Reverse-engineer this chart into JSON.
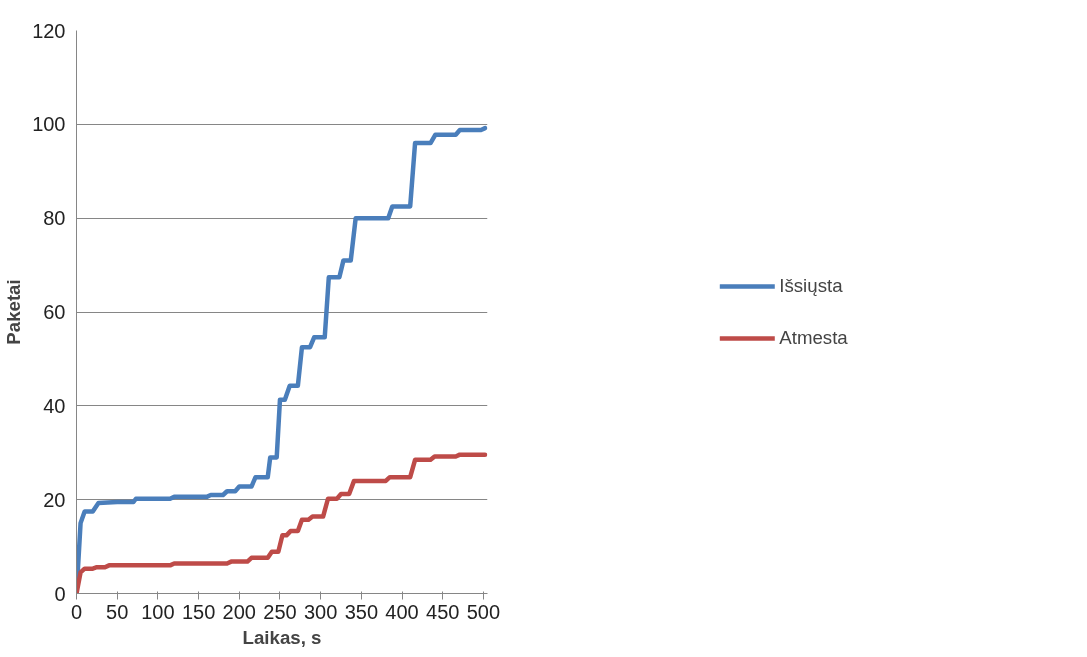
{
  "chart_data": {
    "type": "line",
    "xlabel": "Laikas, s",
    "ylabel": "Paketai",
    "xlim": [
      0,
      505
    ],
    "xticks": [
      0,
      50,
      100,
      150,
      200,
      250,
      300,
      350,
      400,
      450,
      500
    ],
    "ylim": [
      0,
      120
    ],
    "yticks": [
      0,
      20,
      40,
      60,
      80,
      100,
      120
    ],
    "grid": "y",
    "legend": "right",
    "marker": "none",
    "line_style": "solid",
    "series": [
      {
        "name": "Išsiųsta",
        "color": "#4a7ebb",
        "x": [
          0,
          5,
          10,
          20,
          27,
          50,
          70,
          73,
          115,
          120,
          160,
          165,
          180,
          185,
          195,
          200,
          215,
          220,
          235,
          238,
          246,
          250,
          256,
          262,
          272,
          277,
          287,
          292,
          305,
          310,
          323,
          328,
          337,
          343,
          383,
          388,
          410,
          416,
          435,
          441,
          466,
          471,
          497,
          502
        ],
        "values": [
          0,
          15,
          17.5,
          17.5,
          19.3,
          19.5,
          19.5,
          20.2,
          20.2,
          20.6,
          20.6,
          21,
          21,
          21.8,
          21.8,
          22.8,
          22.8,
          24.8,
          24.8,
          29,
          29,
          41.3,
          41.3,
          44.3,
          44.3,
          52.5,
          52.5,
          54.6,
          54.6,
          67.4,
          67.4,
          71,
          71,
          80,
          80,
          82.5,
          82.5,
          96,
          96,
          97.8,
          97.8,
          98.8,
          98.8,
          99.2
        ]
      },
      {
        "name": "Atmesta",
        "color": "#be4b48",
        "x": [
          0,
          5,
          10,
          20,
          25,
          35,
          40,
          115,
          120,
          185,
          190,
          210,
          215,
          235,
          240,
          248,
          253,
          258,
          263,
          272,
          277,
          285,
          290,
          303,
          309,
          320,
          325,
          335,
          341,
          380,
          385,
          410,
          416,
          435,
          440,
          466,
          471,
          502
        ],
        "values": [
          0,
          4.5,
          5.3,
          5.3,
          5.6,
          5.6,
          6,
          6,
          6.4,
          6.4,
          6.8,
          6.8,
          7.6,
          7.6,
          8.9,
          8.9,
          12.4,
          12.4,
          13.3,
          13.3,
          15.7,
          15.7,
          16.4,
          16.4,
          20.2,
          20.2,
          21.2,
          21.2,
          24,
          24,
          24.8,
          24.8,
          28.5,
          28.5,
          29.2,
          29.2,
          29.6,
          29.6
        ]
      }
    ]
  }
}
